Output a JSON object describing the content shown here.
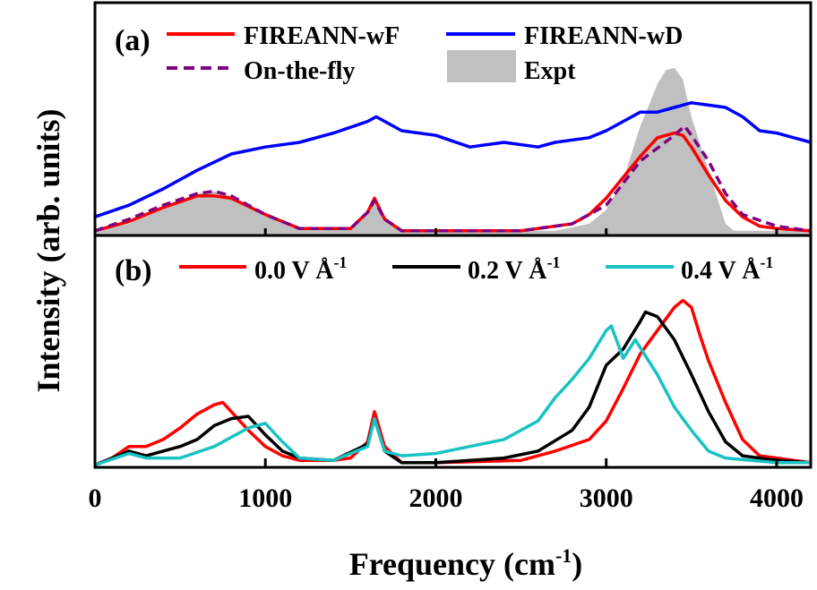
{
  "chart_data": [
    {
      "type": "line",
      "panel_label": "(a)",
      "xlim": [
        0,
        4200
      ],
      "ylim": [
        0,
        1
      ],
      "grid": false,
      "legend_position": "top",
      "series": [
        {
          "name": "FIREANN-wF",
          "color": "#ff0000",
          "style": "solid",
          "x": [
            0,
            200,
            400,
            600,
            700,
            800,
            1000,
            1200,
            1400,
            1500,
            1600,
            1640,
            1700,
            1800,
            2000,
            2500,
            2800,
            2900,
            3000,
            3100,
            3200,
            3300,
            3400,
            3450,
            3500,
            3600,
            3700,
            3800,
            3900,
            4000,
            4200
          ],
          "y": [
            0.02,
            0.06,
            0.12,
            0.17,
            0.17,
            0.16,
            0.09,
            0.03,
            0.03,
            0.03,
            0.1,
            0.16,
            0.07,
            0.02,
            0.02,
            0.02,
            0.05,
            0.09,
            0.16,
            0.25,
            0.34,
            0.42,
            0.44,
            0.43,
            0.38,
            0.26,
            0.15,
            0.08,
            0.04,
            0.03,
            0.02
          ]
        },
        {
          "name": "FIREANN-wD",
          "color": "#0000ff",
          "style": "solid",
          "x": [
            0,
            200,
            400,
            600,
            800,
            1000,
            1200,
            1400,
            1600,
            1650,
            1800,
            2000,
            2200,
            2400,
            2600,
            2700,
            2900,
            3000,
            3100,
            3200,
            3300,
            3400,
            3500,
            3600,
            3700,
            3800,
            3900,
            4000,
            4100,
            4200
          ],
          "y": [
            0.08,
            0.13,
            0.2,
            0.28,
            0.35,
            0.38,
            0.4,
            0.44,
            0.49,
            0.51,
            0.45,
            0.43,
            0.38,
            0.4,
            0.38,
            0.4,
            0.42,
            0.45,
            0.49,
            0.53,
            0.53,
            0.55,
            0.57,
            0.56,
            0.55,
            0.51,
            0.45,
            0.44,
            0.42,
            0.4
          ]
        },
        {
          "name": "On-the-fly",
          "color": "#800080",
          "style": "dashed",
          "x": [
            0,
            200,
            400,
            600,
            700,
            800,
            1000,
            1200,
            1400,
            1500,
            1600,
            1640,
            1700,
            1800,
            2000,
            2500,
            2800,
            3000,
            3200,
            3400,
            3460,
            3500,
            3600,
            3700,
            3800,
            4000,
            4200
          ],
          "y": [
            0.02,
            0.07,
            0.13,
            0.18,
            0.19,
            0.17,
            0.09,
            0.03,
            0.03,
            0.03,
            0.1,
            0.15,
            0.07,
            0.02,
            0.02,
            0.02,
            0.05,
            0.13,
            0.32,
            0.43,
            0.47,
            0.43,
            0.32,
            0.18,
            0.09,
            0.04,
            0.02
          ]
        },
        {
          "name": "Expt",
          "color": "#c0c0c0",
          "style": "filled",
          "x": [
            0,
            200,
            400,
            600,
            700,
            800,
            1000,
            1200,
            1500,
            1600,
            1640,
            1700,
            1800,
            2700,
            2900,
            3000,
            3100,
            3200,
            3300,
            3350,
            3400,
            3450,
            3500,
            3600,
            3700,
            3750,
            4200
          ],
          "y": [
            0.02,
            0.05,
            0.12,
            0.18,
            0.19,
            0.17,
            0.09,
            0.03,
            0.03,
            0.1,
            0.15,
            0.06,
            0.02,
            0.02,
            0.05,
            0.11,
            0.24,
            0.47,
            0.65,
            0.71,
            0.72,
            0.67,
            0.51,
            0.28,
            0.05,
            0.02,
            0.02
          ]
        }
      ]
    },
    {
      "type": "line",
      "panel_label": "(b)",
      "xlabel_main": "Frequency (cm",
      "xlabel_sup": "-1",
      "xlabel_end": ")",
      "ylabel": "Intensity (arb. units)",
      "xticks": [
        "0",
        "1000",
        "2000",
        "3000",
        "4000"
      ],
      "xtick_values": [
        0,
        1000,
        2000,
        3000,
        4000
      ],
      "xlim": [
        0,
        4200
      ],
      "ylim": [
        0,
        1
      ],
      "grid": false,
      "legend_position": "top",
      "series": [
        {
          "name": "0.0 V Å",
          "name_sup": "-1",
          "color": "#ff0000",
          "x": [
            0,
            100,
            200,
            300,
            400,
            500,
            600,
            700,
            750,
            800,
            900,
            1000,
            1100,
            1200,
            1400,
            1500,
            1600,
            1640,
            1700,
            1800,
            2000,
            2500,
            2700,
            2900,
            3000,
            3100,
            3200,
            3300,
            3400,
            3450,
            3500,
            3550,
            3600,
            3700,
            3800,
            3900,
            4000,
            4200
          ],
          "y": [
            0.01,
            0.04,
            0.09,
            0.09,
            0.12,
            0.17,
            0.23,
            0.27,
            0.28,
            0.24,
            0.16,
            0.09,
            0.05,
            0.03,
            0.03,
            0.04,
            0.11,
            0.24,
            0.09,
            0.02,
            0.02,
            0.03,
            0.07,
            0.12,
            0.2,
            0.34,
            0.49,
            0.59,
            0.69,
            0.72,
            0.69,
            0.57,
            0.46,
            0.28,
            0.12,
            0.05,
            0.04,
            0.02
          ]
        },
        {
          "name": "0.2 V Å",
          "name_sup": "-1",
          "color": "#000000",
          "x": [
            0,
            200,
            300,
            500,
            600,
            700,
            800,
            900,
            1000,
            1100,
            1200,
            1400,
            1600,
            1640,
            1700,
            1800,
            2000,
            2400,
            2600,
            2800,
            2900,
            3000,
            3100,
            3200,
            3230,
            3300,
            3400,
            3500,
            3600,
            3700,
            3800,
            4000,
            4200
          ],
          "y": [
            0.01,
            0.07,
            0.05,
            0.09,
            0.12,
            0.18,
            0.21,
            0.22,
            0.14,
            0.07,
            0.04,
            0.03,
            0.1,
            0.21,
            0.07,
            0.02,
            0.02,
            0.04,
            0.07,
            0.16,
            0.26,
            0.44,
            0.51,
            0.63,
            0.67,
            0.65,
            0.55,
            0.4,
            0.24,
            0.11,
            0.05,
            0.03,
            0.02
          ]
        },
        {
          "name": "0.4 V Å",
          "name_sup": "-1",
          "color": "#19c3c3",
          "x": [
            0,
            200,
            300,
            500,
            700,
            900,
            1000,
            1100,
            1200,
            1400,
            1600,
            1640,
            1700,
            1800,
            2000,
            2200,
            2400,
            2600,
            2700,
            2800,
            2900,
            3000,
            3030,
            3100,
            3170,
            3300,
            3400,
            3500,
            3600,
            3700,
            4000,
            4200
          ],
          "y": [
            0.01,
            0.06,
            0.04,
            0.04,
            0.09,
            0.17,
            0.19,
            0.11,
            0.04,
            0.03,
            0.09,
            0.21,
            0.07,
            0.05,
            0.06,
            0.09,
            0.12,
            0.2,
            0.3,
            0.38,
            0.47,
            0.59,
            0.61,
            0.47,
            0.55,
            0.4,
            0.26,
            0.16,
            0.07,
            0.04,
            0.02,
            0.02
          ]
        }
      ]
    }
  ]
}
